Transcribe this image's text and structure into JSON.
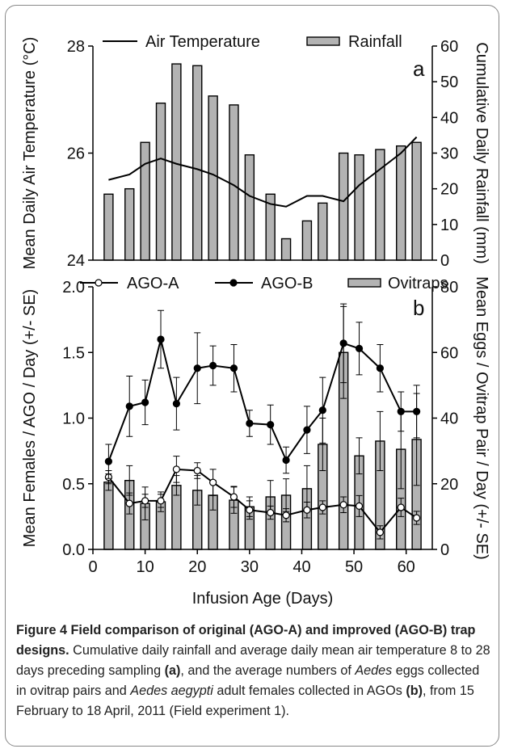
{
  "chart_data": [
    {
      "panel": "a",
      "type": "bar+line",
      "panel_label": "a",
      "ylabel_left": "Mean Daily Air Temperature (°C)",
      "ylabel_right": "Cumulative Daily Rainfall (mm)",
      "ylim_left": [
        24,
        28
      ],
      "ylim_right": [
        0,
        60
      ],
      "yticks_left": [
        "24",
        "26",
        "28"
      ],
      "yticks_right": [
        "0",
        "10",
        "20",
        "30",
        "40",
        "50",
        "60"
      ],
      "legend": {
        "line_label": "Air Temperature",
        "bar_label": "Rainfall",
        "placement": "top"
      },
      "x": [
        3,
        7,
        10,
        13,
        16,
        20,
        23,
        27,
        30,
        34,
        37,
        41,
        44,
        48,
        51,
        55,
        59,
        62
      ],
      "rainfall": [
        18.5,
        20,
        33,
        44,
        55,
        54.5,
        46,
        43.5,
        29.5,
        18.5,
        6,
        11,
        16,
        30,
        29.5,
        31,
        32,
        33
      ],
      "air_temperature": [
        25.5,
        25.6,
        25.8,
        25.9,
        25.8,
        25.7,
        25.6,
        25.4,
        25.2,
        25.05,
        25.0,
        25.2,
        25.2,
        25.1,
        25.4,
        25.7,
        26.0,
        26.3
      ]
    },
    {
      "panel": "b",
      "type": "bar+line",
      "panel_label": "b",
      "ylabel_left": "Mean Females / AGO / Day (+/- SE)",
      "ylabel_right": "Mean Eggs / Ovitrap Pair / Day (+/- SE)",
      "xlabel": "Infusion Age (Days)",
      "ylim_left": [
        0,
        2
      ],
      "ylim_right": [
        0,
        80
      ],
      "xlim": [
        0,
        65
      ],
      "yticks_left": [
        "0.0",
        "0.5",
        "1.0",
        "1.5",
        "2.0"
      ],
      "yticks_right": [
        "0",
        "20",
        "40",
        "60",
        "80"
      ],
      "xticks": [
        "0",
        "10",
        "20",
        "30",
        "40",
        "50",
        "60"
      ],
      "legend": {
        "ago_a_label": "AGO-A",
        "ago_b_label": "AGO-B",
        "ovitraps_label": "Ovitraps",
        "placement": "top"
      },
      "x": [
        3,
        7,
        10,
        13,
        16,
        20,
        23,
        27,
        30,
        34,
        37,
        41,
        44,
        48,
        51,
        55,
        59,
        62
      ],
      "ovitraps": [
        20.5,
        21,
        14,
        14.5,
        19.5,
        18,
        16.5,
        15,
        13,
        16,
        16.5,
        18.5,
        32,
        60,
        28.5,
        33,
        30.5,
        33.5
      ],
      "ovitraps_se": [
        2.5,
        4.5,
        5,
        3,
        3,
        4.5,
        4.5,
        4,
        3,
        5,
        5,
        7,
        8,
        14,
        5.5,
        9,
        12,
        14
      ],
      "ago_a": [
        0.55,
        0.35,
        0.37,
        0.37,
        0.61,
        0.6,
        0.51,
        0.4,
        0.3,
        0.28,
        0.26,
        0.3,
        0.32,
        0.34,
        0.33,
        0.13,
        0.32,
        0.24
      ],
      "ago_a_se": [
        0.05,
        0.08,
        0.05,
        0.05,
        0.1,
        0.06,
        0.1,
        0.08,
        0.07,
        0.05,
        0.05,
        0.06,
        0.05,
        0.06,
        0.08,
        0.05,
        0.07,
        0.05
      ],
      "ago_b": [
        0.67,
        1.09,
        1.12,
        1.6,
        1.11,
        1.38,
        1.4,
        1.38,
        0.96,
        0.95,
        0.68,
        0.91,
        1.06,
        1.57,
        1.53,
        1.38,
        1.05,
        1.05
      ],
      "ago_b_se": [
        0.13,
        0.23,
        0.17,
        0.22,
        0.2,
        0.27,
        0.15,
        0.18,
        0.1,
        0.15,
        0.1,
        0.18,
        0.25,
        0.3,
        0.2,
        0.18,
        0.15,
        0.2
      ]
    }
  ],
  "caption": {
    "label": "Figure 4",
    "title": "Field comparison of original (AGO-A) and improved (AGO-B) trap designs.",
    "t1": "Cumulative daily rainfall and average daily mean air temperature 8 to 28 days preceding sampling ",
    "ref_a": "(a)",
    "t2": ", and the average numbers of ",
    "genus1": "Aedes",
    "t3": " eggs collected in ovitrap pairs and ",
    "species": "Aedes aegypti",
    "t4": " adult females collected in AGOs ",
    "ref_b": "(b)",
    "t5": ", from 15 February to 18 April, 2011 (Field experiment 1)."
  }
}
